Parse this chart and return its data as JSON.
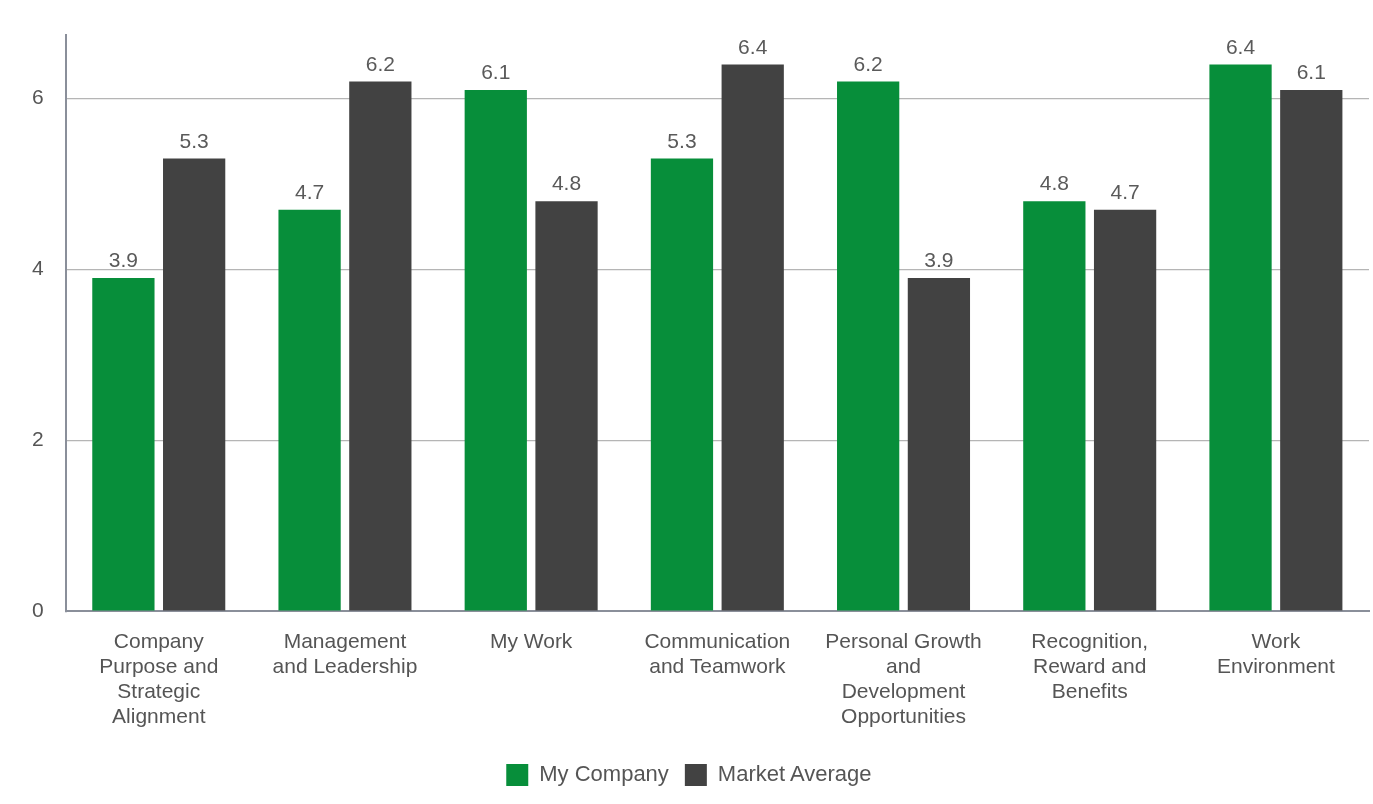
{
  "chart_data": {
    "type": "bar",
    "categories": [
      "Company Purpose and Strategic Alignment",
      "Management and Leadership",
      "My Work",
      "Communication and Teamwork",
      "Personal Growth and Development Opportunities",
      "Recognition, Reward and Benefits",
      "Work Environment"
    ],
    "series": [
      {
        "name": "My Company",
        "color": "#078e3a",
        "values": [
          3.9,
          4.7,
          6.1,
          5.3,
          6.2,
          4.8,
          6.4
        ]
      },
      {
        "name": "Market Average",
        "color": "#424242",
        "values": [
          5.3,
          6.2,
          4.8,
          6.4,
          3.9,
          4.7,
          6.1
        ]
      }
    ],
    "ylim": [
      0,
      6.75
    ],
    "yticks": [
      0,
      2,
      4,
      6
    ],
    "grid": "y",
    "legend": "bottom",
    "data_labels": true
  }
}
